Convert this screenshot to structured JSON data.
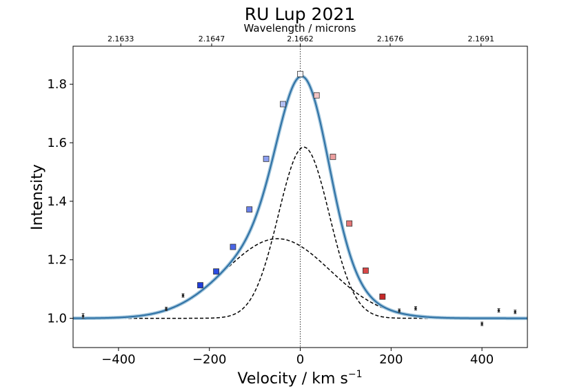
{
  "chart_data": {
    "type": "scatter",
    "title": "RU Lup 2021",
    "xlabel": "Velocity / km s",
    "xlabel_superscript": "−1",
    "ylabel": "Intensity",
    "top_xlabel": "Wavelength / microns",
    "xlim": [
      -500,
      500
    ],
    "ylim": [
      0.9,
      1.93
    ],
    "grid": false,
    "x_ticks": [
      {
        "value": -400,
        "label": "−400"
      },
      {
        "value": -200,
        "label": "−200"
      },
      {
        "value": 0,
        "label": "0"
      },
      {
        "value": 200,
        "label": "200"
      },
      {
        "value": 400,
        "label": "400"
      }
    ],
    "y_ticks": [
      {
        "value": 1.0,
        "label": "1.0"
      },
      {
        "value": 1.2,
        "label": "1.2"
      },
      {
        "value": 1.4,
        "label": "1.4"
      },
      {
        "value": 1.6,
        "label": "1.6"
      },
      {
        "value": 1.8,
        "label": "1.8"
      }
    ],
    "top_ticks": [
      {
        "value": -395,
        "label": "2.1633"
      },
      {
        "value": -195,
        "label": "2.1647"
      },
      {
        "value": 0,
        "label": "2.1662"
      },
      {
        "value": 198,
        "label": "2.1676"
      },
      {
        "value": 398,
        "label": "2.1691"
      }
    ],
    "reference_line_x": 0,
    "fit_components": [
      {
        "shape": "gaussian",
        "amplitude": 0.585,
        "center": 8,
        "sigma": 56
      },
      {
        "shape": "gaussian",
        "amplitude": 0.272,
        "center": -50,
        "sigma": 115
      }
    ],
    "fit_continuum": 1.0,
    "colored_points": [
      {
        "x": -220,
        "y": 1.113,
        "color": "#1f3cd8"
      },
      {
        "x": -185,
        "y": 1.16,
        "color": "#2a4be0"
      },
      {
        "x": -148,
        "y": 1.244,
        "color": "#4a66e6"
      },
      {
        "x": -112,
        "y": 1.372,
        "color": "#6a81ea"
      },
      {
        "x": -75,
        "y": 1.545,
        "color": "#8c9ff0"
      },
      {
        "x": -38,
        "y": 1.732,
        "color": "#b3c0f4"
      },
      {
        "x": 0,
        "y": 1.835,
        "color": "#f4f4f8"
      },
      {
        "x": 36,
        "y": 1.762,
        "color": "#f2c6c6"
      },
      {
        "x": 72,
        "y": 1.552,
        "color": "#ec9f9f"
      },
      {
        "x": 108,
        "y": 1.324,
        "color": "#e37676"
      },
      {
        "x": 144,
        "y": 1.163,
        "color": "#d84848"
      },
      {
        "x": 181,
        "y": 1.074,
        "color": "#c62828"
      }
    ],
    "continuum_points": [
      {
        "x": -478,
        "y": 1.008,
        "err": 0.008
      },
      {
        "x": -295,
        "y": 1.032,
        "err": 0.006
      },
      {
        "x": -258,
        "y": 1.078,
        "err": 0.006
      },
      {
        "x": 218,
        "y": 1.026,
        "err": 0.006
      },
      {
        "x": 254,
        "y": 1.034,
        "err": 0.006
      },
      {
        "x": 400,
        "y": 0.981,
        "err": 0.006
      },
      {
        "x": 437,
        "y": 1.027,
        "err": 0.006
      },
      {
        "x": 473,
        "y": 1.022,
        "err": 0.006
      }
    ],
    "colors": {
      "fit_line": "#2c6fa3",
      "fit_halo": "#9ec3db",
      "components": "#000000",
      "reference_line": "#000000",
      "errorbars": "#333333"
    }
  }
}
